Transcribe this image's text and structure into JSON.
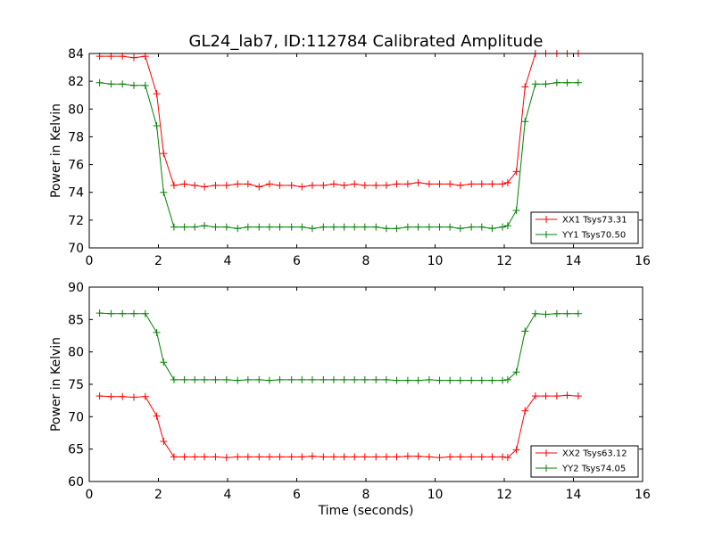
{
  "chart_data": [
    {
      "type": "line",
      "title": "GL24_lab7, ID:112784 Calibrated Amplitude",
      "xlabel": "",
      "ylabel": "Power in Kelvin",
      "xlim": [
        0,
        16
      ],
      "ylim": [
        70,
        84
      ],
      "xticks": [
        "0",
        "2",
        "4",
        "6",
        "8",
        "10",
        "12",
        "14",
        "16"
      ],
      "yticks": [
        "70",
        "72",
        "74",
        "76",
        "78",
        "80",
        "82",
        "84"
      ],
      "legend_position": "lower-right",
      "x": [
        0.3,
        0.63,
        0.96,
        1.29,
        1.62,
        1.95,
        2.15,
        2.45,
        2.75,
        3.05,
        3.33,
        3.65,
        3.97,
        4.29,
        4.59,
        4.91,
        5.21,
        5.51,
        5.85,
        6.15,
        6.45,
        6.77,
        7.07,
        7.37,
        7.67,
        7.97,
        8.29,
        8.59,
        8.89,
        9.21,
        9.51,
        9.83,
        10.13,
        10.43,
        10.73,
        11.05,
        11.35,
        11.65,
        11.95,
        12.1,
        12.35,
        12.6,
        12.9,
        13.2,
        13.52,
        13.82,
        14.14
      ],
      "series": [
        {
          "name": "XX1 Tsys73.31",
          "color": "#ff0000",
          "values": [
            83.8,
            83.8,
            83.8,
            83.7,
            83.8,
            81.1,
            76.8,
            74.5,
            74.6,
            74.5,
            74.4,
            74.5,
            74.5,
            74.6,
            74.6,
            74.4,
            74.6,
            74.5,
            74.5,
            74.4,
            74.5,
            74.5,
            74.6,
            74.5,
            74.6,
            74.5,
            74.5,
            74.5,
            74.6,
            74.6,
            74.7,
            74.6,
            74.6,
            74.6,
            74.5,
            74.6,
            74.6,
            74.6,
            74.6,
            74.7,
            75.5,
            81.6,
            84.0,
            84.0,
            84.0,
            84.0,
            84.0
          ]
        },
        {
          "name": "YY1 Tsys70.50",
          "color": "#008000",
          "values": [
            81.9,
            81.8,
            81.8,
            81.7,
            81.7,
            78.8,
            74.0,
            71.5,
            71.5,
            71.5,
            71.6,
            71.5,
            71.5,
            71.4,
            71.5,
            71.5,
            71.5,
            71.5,
            71.5,
            71.5,
            71.4,
            71.5,
            71.5,
            71.5,
            71.5,
            71.5,
            71.5,
            71.4,
            71.4,
            71.5,
            71.5,
            71.5,
            71.5,
            71.5,
            71.4,
            71.5,
            71.5,
            71.4,
            71.5,
            71.6,
            72.7,
            79.1,
            81.8,
            81.8,
            81.9,
            81.9,
            81.9
          ]
        }
      ]
    },
    {
      "type": "line",
      "title": "",
      "xlabel": "Time (seconds)",
      "ylabel": "Power in Kelvin",
      "xlim": [
        0,
        16
      ],
      "ylim": [
        60,
        90
      ],
      "xticks": [
        "0",
        "2",
        "4",
        "6",
        "8",
        "10",
        "12",
        "14",
        "16"
      ],
      "yticks": [
        "60",
        "65",
        "70",
        "75",
        "80",
        "85",
        "90"
      ],
      "legend_position": "lower-right",
      "x": [
        0.3,
        0.63,
        0.96,
        1.29,
        1.62,
        1.95,
        2.15,
        2.45,
        2.75,
        3.05,
        3.33,
        3.65,
        3.97,
        4.29,
        4.59,
        4.91,
        5.21,
        5.51,
        5.85,
        6.15,
        6.45,
        6.77,
        7.07,
        7.37,
        7.67,
        7.97,
        8.29,
        8.59,
        8.89,
        9.21,
        9.51,
        9.83,
        10.13,
        10.43,
        10.73,
        11.05,
        11.35,
        11.65,
        11.95,
        12.1,
        12.35,
        12.6,
        12.9,
        13.2,
        13.52,
        13.82,
        14.14
      ],
      "series": [
        {
          "name": "XX2 Tsys63.12",
          "color": "#ff0000",
          "values": [
            73.2,
            73.1,
            73.1,
            73.0,
            73.1,
            70.1,
            66.2,
            63.8,
            63.8,
            63.8,
            63.8,
            63.8,
            63.7,
            63.8,
            63.8,
            63.8,
            63.8,
            63.8,
            63.8,
            63.8,
            63.9,
            63.8,
            63.8,
            63.8,
            63.8,
            63.8,
            63.8,
            63.8,
            63.8,
            63.9,
            63.9,
            63.8,
            63.7,
            63.8,
            63.8,
            63.8,
            63.8,
            63.8,
            63.8,
            63.7,
            64.9,
            70.9,
            73.2,
            73.2,
            73.2,
            73.3,
            73.2
          ]
        },
        {
          "name": "YY2 Tsys74.05",
          "color": "#008000",
          "values": [
            86.0,
            85.9,
            85.9,
            85.9,
            85.9,
            83.0,
            78.4,
            75.7,
            75.7,
            75.7,
            75.7,
            75.7,
            75.7,
            75.6,
            75.7,
            75.7,
            75.6,
            75.7,
            75.7,
            75.7,
            75.7,
            75.7,
            75.7,
            75.7,
            75.7,
            75.7,
            75.7,
            75.7,
            75.6,
            75.6,
            75.6,
            75.7,
            75.6,
            75.6,
            75.6,
            75.6,
            75.6,
            75.6,
            75.6,
            75.7,
            76.9,
            83.2,
            85.9,
            85.8,
            85.9,
            85.9,
            85.9
          ]
        }
      ]
    }
  ]
}
